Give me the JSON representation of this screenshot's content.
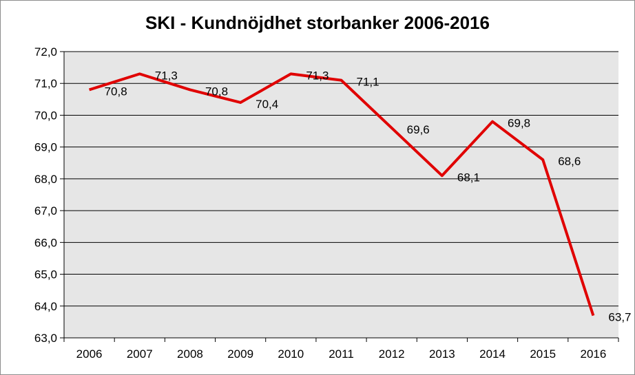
{
  "chart_data": {
    "type": "line",
    "title": "SKI - Kundnöjdhet storbanker 2006-2016",
    "categories": [
      "2006",
      "2007",
      "2008",
      "2009",
      "2010",
      "2011",
      "2012",
      "2013",
      "2014",
      "2015",
      "2016"
    ],
    "series": [
      {
        "values": [
          70.8,
          71.3,
          70.8,
          70.4,
          71.3,
          71.1,
          69.6,
          68.1,
          69.8,
          68.6,
          63.7
        ],
        "labels": [
          "70,8",
          "71,3",
          "70,8",
          "70,4",
          "71,3",
          "71,1",
          "69,6",
          "68,1",
          "69,8",
          "68,6",
          "63,7"
        ],
        "color": "#e00000"
      }
    ],
    "ylim": [
      63,
      72
    ],
    "yticks": [
      63,
      64,
      65,
      66,
      67,
      68,
      69,
      70,
      71,
      72
    ],
    "ytick_labels": [
      "63,0",
      "64,0",
      "65,0",
      "66,0",
      "67,0",
      "68,0",
      "69,0",
      "70,0",
      "71,0",
      "72,0"
    ],
    "grid": true,
    "plot_background": "#e6e6e6",
    "legend": "none"
  }
}
